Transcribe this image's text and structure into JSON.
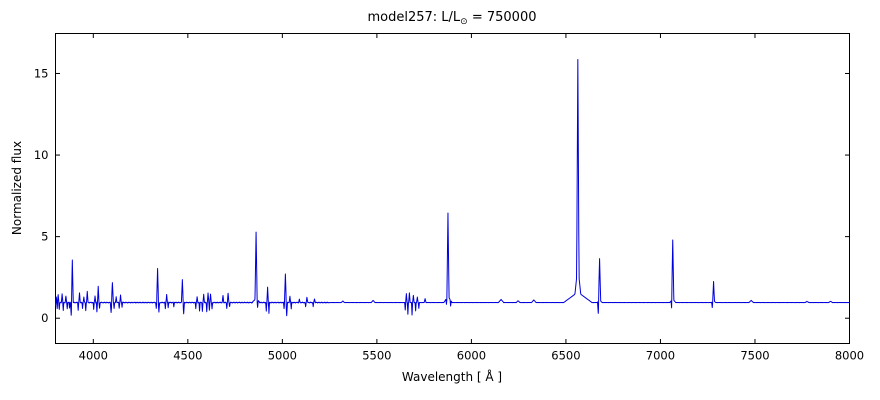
{
  "figure": {
    "title_prefix": "model257: L/L",
    "title_sub": "⊙",
    "title_suffix": " = 750000",
    "xlabel": "Wavelength [ Å ]",
    "ylabel": "Normalized flux"
  },
  "chart_data": {
    "type": "line",
    "title": "model257: L/L⊙ = 750000",
    "xlabel": "Wavelength [ Å ]",
    "ylabel": "Normalized flux",
    "xlim": [
      3800,
      8000
    ],
    "ylim": [
      -1.55,
      17.45
    ],
    "xticks": [
      4000,
      4500,
      5000,
      5500,
      6000,
      6500,
      7000,
      7500,
      8000
    ],
    "yticks": [
      0,
      5,
      10,
      15
    ],
    "grid": false,
    "legend": false,
    "line_color": "#0000dd",
    "background_color": "#ffffff",
    "continuum_flux": 0.96,
    "emission_peaks": [
      [
        3804,
        1.3,
        4
      ],
      [
        3814,
        1.45,
        4
      ],
      [
        3835,
        1.5,
        4
      ],
      [
        3855,
        1.35,
        4
      ],
      [
        3889,
        3.55,
        5
      ],
      [
        3927,
        1.55,
        4
      ],
      [
        3950,
        1.3,
        4
      ],
      [
        3968,
        1.65,
        4
      ],
      [
        4009,
        1.35,
        4
      ],
      [
        4026,
        1.95,
        4
      ],
      [
        4101,
        2.2,
        5
      ],
      [
        4121,
        1.3,
        4
      ],
      [
        4144,
        1.4,
        4
      ],
      [
        4340,
        3.06,
        5
      ],
      [
        4388,
        1.45,
        4
      ],
      [
        4471,
        2.35,
        5
      ],
      [
        4549,
        1.3,
        4
      ],
      [
        4584,
        1.45,
        4
      ],
      [
        4607,
        1.55,
        4
      ],
      [
        4620,
        1.5,
        4
      ],
      [
        4686,
        1.4,
        4
      ],
      [
        4713,
        1.55,
        4
      ],
      [
        4861,
        5.27,
        6
      ],
      [
        4861,
        1.25,
        20
      ],
      [
        4922,
        1.9,
        4
      ],
      [
        5016,
        2.7,
        5
      ],
      [
        5040,
        1.35,
        4
      ],
      [
        5090,
        1.15,
        4
      ],
      [
        5130,
        1.3,
        4
      ],
      [
        5170,
        1.2,
        4
      ],
      [
        5320,
        1.06,
        8
      ],
      [
        5480,
        1.09,
        10
      ],
      [
        5656,
        1.5,
        4
      ],
      [
        5672,
        1.55,
        4
      ],
      [
        5693,
        1.4,
        4
      ],
      [
        5714,
        1.3,
        4
      ],
      [
        5755,
        1.2,
        5
      ],
      [
        5876,
        6.45,
        6
      ],
      [
        5876,
        1.35,
        22
      ],
      [
        6157,
        1.15,
        14
      ],
      [
        6247,
        1.07,
        10
      ],
      [
        6330,
        1.12,
        12
      ],
      [
        6563,
        15.85,
        7
      ],
      [
        6563,
        3.2,
        20
      ],
      [
        6563,
        1.6,
        75
      ],
      [
        6678,
        3.65,
        6
      ],
      [
        6678,
        1.12,
        14
      ],
      [
        7065,
        4.8,
        6
      ],
      [
        7065,
        1.18,
        16
      ],
      [
        7281,
        2.25,
        5
      ],
      [
        7281,
        1.08,
        12
      ],
      [
        7480,
        1.09,
        12
      ],
      [
        7775,
        1.03,
        10
      ],
      [
        7900,
        1.04,
        10
      ]
    ],
    "absorption_dips": [
      [
        3800,
        0.75,
        3
      ],
      [
        3809,
        0.6,
        3
      ],
      [
        3820,
        0.55,
        3
      ],
      [
        3841,
        0.5,
        3
      ],
      [
        3862,
        0.6,
        3
      ],
      [
        3874,
        0.65,
        3
      ],
      [
        3883,
        0.18,
        4
      ],
      [
        3920,
        0.5,
        3
      ],
      [
        3943,
        0.6,
        3
      ],
      [
        3960,
        0.45,
        3
      ],
      [
        4002,
        0.55,
        3
      ],
      [
        4019,
        0.4,
        3
      ],
      [
        4033,
        0.6,
        3
      ],
      [
        4094,
        0.35,
        4
      ],
      [
        4110,
        0.6,
        3
      ],
      [
        4137,
        0.6,
        3
      ],
      [
        4152,
        0.7,
        3
      ],
      [
        4333,
        0.6,
        3
      ],
      [
        4347,
        0.4,
        4
      ],
      [
        4381,
        0.6,
        3
      ],
      [
        4396,
        0.65,
        3
      ],
      [
        4426,
        0.7,
        3
      ],
      [
        4478,
        0.25,
        4
      ],
      [
        4542,
        0.6,
        3
      ],
      [
        4562,
        0.45,
        3
      ],
      [
        4577,
        0.4,
        3
      ],
      [
        4600,
        0.38,
        3
      ],
      [
        4614,
        0.5,
        3
      ],
      [
        4628,
        0.55,
        3
      ],
      [
        4706,
        0.6,
        3
      ],
      [
        4721,
        0.7,
        3
      ],
      [
        4869,
        0.5,
        4
      ],
      [
        4915,
        0.45,
        3
      ],
      [
        4929,
        0.3,
        3
      ],
      [
        5009,
        0.6,
        3
      ],
      [
        5023,
        0.14,
        4
      ],
      [
        5047,
        0.6,
        3
      ],
      [
        5123,
        0.7,
        3
      ],
      [
        5163,
        0.72,
        3
      ],
      [
        5650,
        0.5,
        3
      ],
      [
        5664,
        0.25,
        3
      ],
      [
        5686,
        0.2,
        3
      ],
      [
        5705,
        0.45,
        3
      ],
      [
        5722,
        0.6,
        3
      ],
      [
        5868,
        0.6,
        3
      ],
      [
        5890,
        0.6,
        3
      ],
      [
        6671,
        0.22,
        4
      ],
      [
        7059,
        0.5,
        3
      ],
      [
        7274,
        0.6,
        3
      ]
    ]
  }
}
